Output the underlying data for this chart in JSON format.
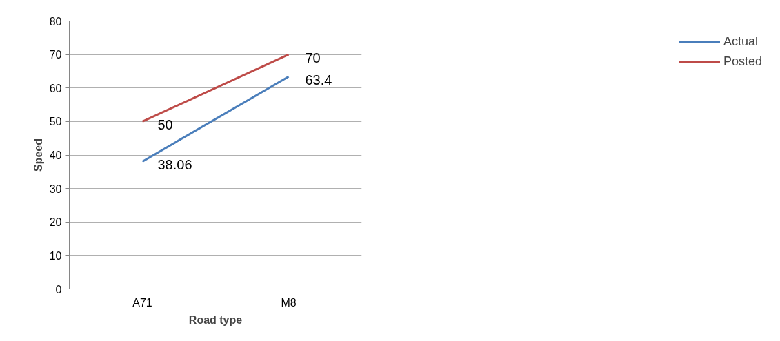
{
  "chart_data": {
    "type": "line",
    "xlabel": "Road type",
    "ylabel": "Speed",
    "categories": [
      "A71",
      "M8"
    ],
    "series": [
      {
        "name": "Actual",
        "color": "#4a7ebb",
        "values": [
          38.06,
          63.4
        ]
      },
      {
        "name": "Posted",
        "color": "#be4b48",
        "values": [
          50,
          70
        ]
      }
    ],
    "ylim": [
      0,
      80
    ],
    "yticks": [
      0,
      10,
      20,
      30,
      40,
      50,
      60,
      70,
      80
    ],
    "grid": "y",
    "legend": "right",
    "data_labels": true,
    "marker": "none",
    "line_style": "solid"
  }
}
